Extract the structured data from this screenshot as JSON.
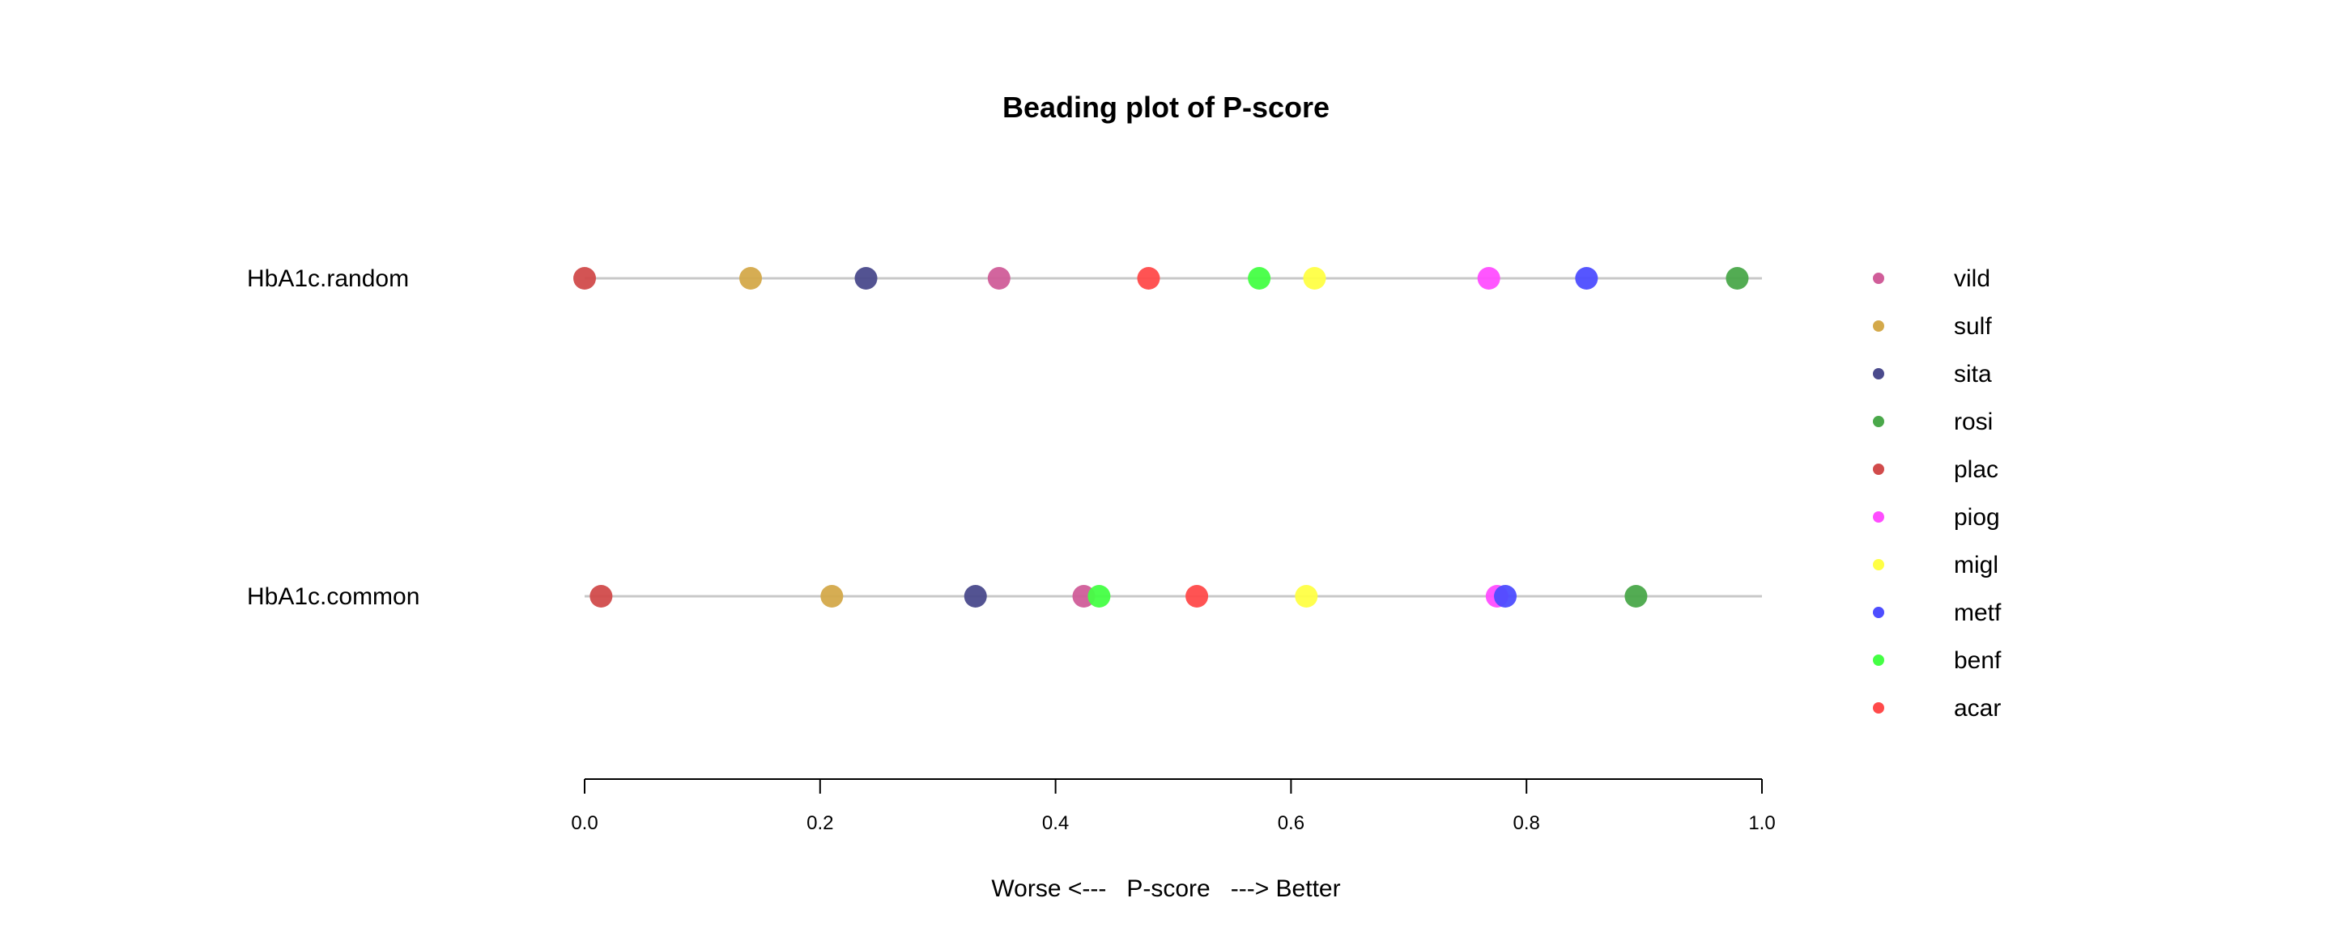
{
  "chart_data": {
    "type": "scatter",
    "title": "Beading plot of P-score",
    "xlabel": "Worse <---   P-score   ---> Better",
    "xlim": [
      0,
      1
    ],
    "x_ticks": [
      "0.0",
      "0.2",
      "0.4",
      "0.6",
      "0.8",
      "1.0"
    ],
    "x_tick_values": [
      0,
      0.2,
      0.4,
      0.6,
      0.8,
      1.0
    ],
    "rows": [
      "HbA1c.random",
      "HbA1c.common"
    ],
    "legend_position": "right",
    "series": [
      {
        "name": "vild",
        "color": "#d05d99",
        "values": [
          0.352,
          0.424
        ]
      },
      {
        "name": "sulf",
        "color": "#d4a94a",
        "values": [
          0.141,
          0.21
        ]
      },
      {
        "name": "sita",
        "color": "#4a4a8c",
        "values": [
          0.239,
          0.332
        ]
      },
      {
        "name": "rosi",
        "color": "#4aa84a",
        "values": [
          0.979,
          0.893
        ]
      },
      {
        "name": "plac",
        "color": "#d14b4b",
        "values": [
          0.0,
          0.014
        ]
      },
      {
        "name": "piog",
        "color": "#ff4dff",
        "values": [
          0.768,
          0.775
        ]
      },
      {
        "name": "migl",
        "color": "#ffff44",
        "values": [
          0.62,
          0.613
        ]
      },
      {
        "name": "metf",
        "color": "#4d4dff",
        "values": [
          0.851,
          0.782
        ]
      },
      {
        "name": "benf",
        "color": "#44ff44",
        "values": [
          0.573,
          0.437
        ]
      },
      {
        "name": "acar",
        "color": "#ff4a4a",
        "values": [
          0.479,
          0.52
        ]
      }
    ],
    "grid": false
  }
}
